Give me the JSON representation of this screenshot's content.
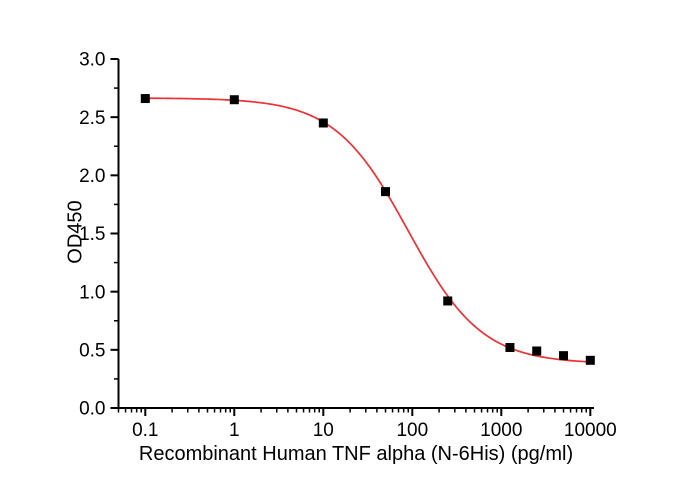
{
  "chart_data": {
    "type": "scatter",
    "title": "",
    "xlabel": "Recombinant Human TNF alpha (N-6His) (pg/ml)",
    "ylabel": "OD450",
    "x_scale": "log",
    "y_scale": "linear",
    "xlim": [
      0.05,
      11000
    ],
    "ylim": [
      0,
      3
    ],
    "x_major_ticks": [
      0.1,
      1,
      10,
      100,
      1000,
      10000
    ],
    "x_tick_labels": [
      "0.1",
      "1",
      "10",
      "100",
      "1000",
      "10000"
    ],
    "y_major_ticks": [
      0.0,
      0.5,
      1.0,
      1.5,
      2.0,
      2.5,
      3.0
    ],
    "y_tick_labels": [
      "0.0",
      "0.5",
      "1.0",
      "1.5",
      "2.0",
      "2.5",
      "3.0"
    ],
    "y_minor_step": 0.25,
    "grid": false,
    "legend": false,
    "background_color": "#ffffff",
    "axis_color": "#000000",
    "series": [
      {
        "name": "OD450 measurements",
        "marker": "square",
        "marker_size": 9,
        "marker_color": "#000000",
        "x": [
          0.1,
          1,
          10,
          50,
          250,
          1250,
          2500,
          5000,
          10000
        ],
        "y": [
          2.66,
          2.65,
          2.45,
          1.86,
          0.92,
          0.52,
          0.49,
          0.45,
          0.41
        ]
      }
    ],
    "fit_curve": {
      "model": "4PL",
      "top": 2.665,
      "bottom": 0.38,
      "ec50": 90,
      "hill": 1.05,
      "color": "#ee3135",
      "x_range": [
        0.1,
        10000
      ]
    }
  }
}
